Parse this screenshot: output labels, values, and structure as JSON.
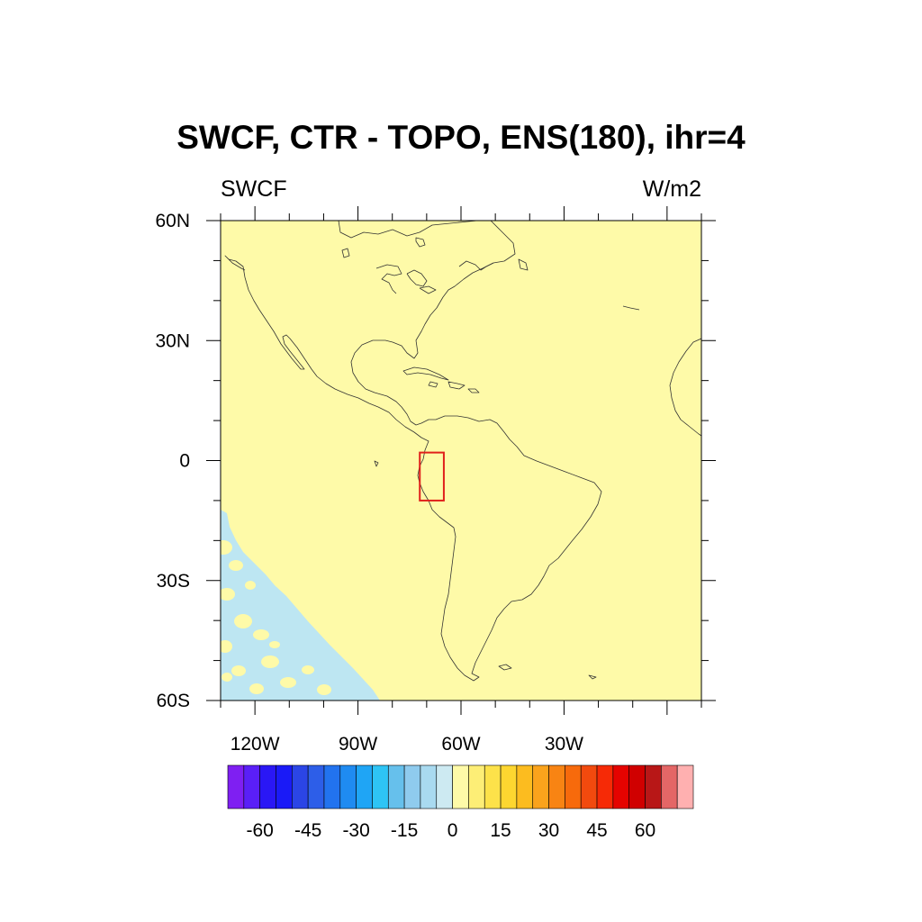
{
  "title": "SWCF, CTR - TOPO, ENS(180), ihr=4",
  "left_label": "SWCF",
  "right_label": "W/m2",
  "map": {
    "lon_range": [
      -130,
      10
    ],
    "lat_range": [
      -60,
      60
    ],
    "background_color": "#fefaa8",
    "coastline_color": "#333333",
    "lat_labels": [
      "60N",
      "30N",
      "0",
      "30S",
      "60S"
    ],
    "lat_values": [
      60,
      30,
      0,
      -30,
      -60
    ],
    "lon_labels": [
      "120W",
      "90W",
      "60W",
      "30W"
    ],
    "lon_values": [
      -120,
      -90,
      -60,
      -30
    ],
    "box": {
      "color": "#e0201b",
      "lon_range": [
        -72,
        -65
      ],
      "lat_range": [
        -10,
        2
      ]
    },
    "negative_region_color": "#bde6f2"
  },
  "colorbar": {
    "colors": [
      "#7f1ff2",
      "#5a1ff7",
      "#2a17f5",
      "#1a1af7",
      "#2b45e6",
      "#2d5ee8",
      "#2273ef",
      "#1f8bf1",
      "#1fa5f5",
      "#2ec4f5",
      "#66c0ec",
      "#8fcbee",
      "#a9daf0",
      "#cdeaf2",
      "#fefaa8",
      "#fdee76",
      "#fde24a",
      "#fdd630",
      "#fcbc1f",
      "#faa31c",
      "#f88413",
      "#f76a0c",
      "#f24a0e",
      "#f62a06",
      "#e50300",
      "#d00000",
      "#b81717",
      "#e46666",
      "#ffb0b0"
    ],
    "tick_labels": [
      "-60",
      "-45",
      "-30",
      "-15",
      "0",
      "15",
      "30",
      "45",
      "60"
    ],
    "tick_values": [
      -60,
      -45,
      -30,
      -15,
      0,
      15,
      30,
      45,
      60
    ]
  }
}
